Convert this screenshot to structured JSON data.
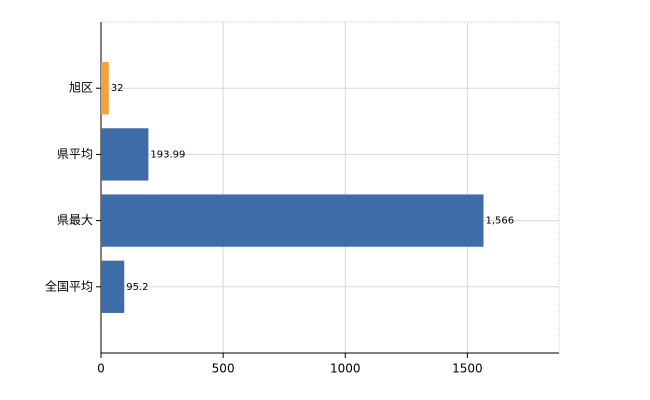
{
  "chart_data": {
    "type": "bar",
    "orientation": "horizontal",
    "categories": [
      "旭区",
      "県平均",
      "県最大",
      "全国平均"
    ],
    "values": [
      32,
      193.99,
      1566,
      95.2
    ],
    "value_labels": [
      "32",
      "193.99",
      "1,566",
      "95.2"
    ],
    "colors": [
      "#f0a23c",
      "#3d6ca8",
      "#3d6ca8",
      "#3d6ca8"
    ],
    "xlim": [
      0,
      1875
    ],
    "xticks": [
      0,
      500,
      1000,
      1500
    ],
    "grid": true
  }
}
